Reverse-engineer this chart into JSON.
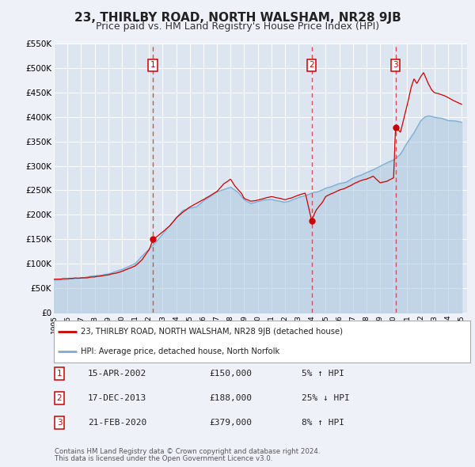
{
  "title": "23, THIRLBY ROAD, NORTH WALSHAM, NR28 9JB",
  "subtitle": "Price paid vs. HM Land Registry's House Price Index (HPI)",
  "title_fontsize": 11,
  "subtitle_fontsize": 9,
  "bg_color": "#eef2f8",
  "plot_bg_color": "#dde6f0",
  "grid_color": "#ffffff",
  "red_line_color": "#cc0000",
  "blue_line_color": "#7aadd4",
  "blue_fill_color": "#aac8e0",
  "dashed_line_color": "#cc4444",
  "ylim_min": 0,
  "ylim_max": 550000,
  "yticks": [
    0,
    50000,
    100000,
    150000,
    200000,
    250000,
    300000,
    350000,
    400000,
    450000,
    500000,
    550000
  ],
  "ytick_labels": [
    "£0",
    "£50K",
    "£100K",
    "£150K",
    "£200K",
    "£250K",
    "£300K",
    "£350K",
    "£400K",
    "£450K",
    "£500K",
    "£550K"
  ],
  "xtick_years": [
    1995,
    1996,
    1997,
    1998,
    1999,
    2000,
    2001,
    2002,
    2003,
    2004,
    2005,
    2006,
    2007,
    2008,
    2009,
    2010,
    2011,
    2012,
    2013,
    2014,
    2015,
    2016,
    2017,
    2018,
    2019,
    2020,
    2021,
    2022,
    2023,
    2024,
    2025
  ],
  "sale_events": [
    {
      "label": "1",
      "date_num": 2002.29,
      "price": 150000
    },
    {
      "label": "2",
      "date_num": 2013.96,
      "price": 188000
    },
    {
      "label": "3",
      "date_num": 2020.13,
      "price": 379000
    }
  ],
  "table_rows": [
    {
      "num": "1",
      "date": "15-APR-2002",
      "price": "£150,000",
      "pct": "5% ↑ HPI"
    },
    {
      "num": "2",
      "date": "17-DEC-2013",
      "price": "£188,000",
      "pct": "25% ↓ HPI"
    },
    {
      "num": "3",
      "date": "21-FEB-2020",
      "price": "£379,000",
      "pct": "8% ↑ HPI"
    }
  ],
  "legend_line1": "23, THIRLBY ROAD, NORTH WALSHAM, NR28 9JB (detached house)",
  "legend_line2": "HPI: Average price, detached house, North Norfolk",
  "footer1": "Contains HM Land Registry data © Crown copyright and database right 2024.",
  "footer2": "This data is licensed under the Open Government Licence v3.0."
}
